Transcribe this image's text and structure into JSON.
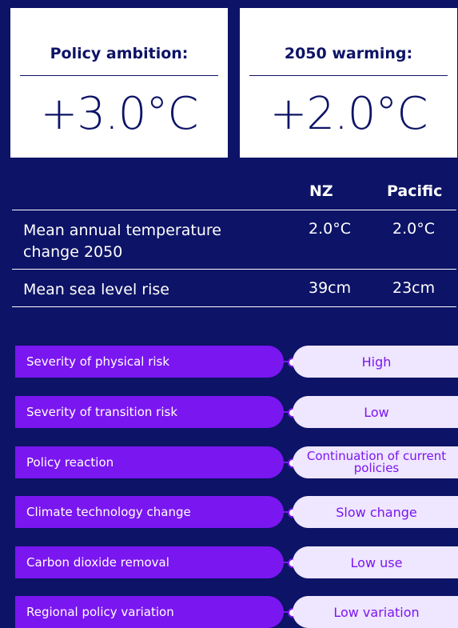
{
  "cards": {
    "policy_ambition": {
      "label": "Policy ambition:",
      "value": "+3.0°C"
    },
    "warming_2050": {
      "label": "2050 warming:",
      "value": "+2.0°C"
    }
  },
  "table": {
    "headers": {
      "nz": "NZ",
      "pacific": "Pacific"
    },
    "rows": [
      {
        "label": "Mean annual temperature change 2050",
        "nz": "2.0°C",
        "pacific": "2.0°C"
      },
      {
        "label": "Mean sea level rise",
        "nz": "39cm",
        "pacific": "23cm"
      }
    ]
  },
  "risks": [
    {
      "label": "Severity of physical risk",
      "value": "High"
    },
    {
      "label": "Severity of transition risk",
      "value": "Low"
    },
    {
      "label": "Policy reaction",
      "value": "Continuation of current policies"
    },
    {
      "label": "Climate technology change",
      "value": "Slow change"
    },
    {
      "label": "Carbon dioxide removal",
      "value": "Low use"
    },
    {
      "label": "Regional policy variation",
      "value": "Low variation"
    }
  ],
  "colors": {
    "background": "#0d1366",
    "accent": "#7a16f0",
    "value_pill": "#efe6ff"
  }
}
